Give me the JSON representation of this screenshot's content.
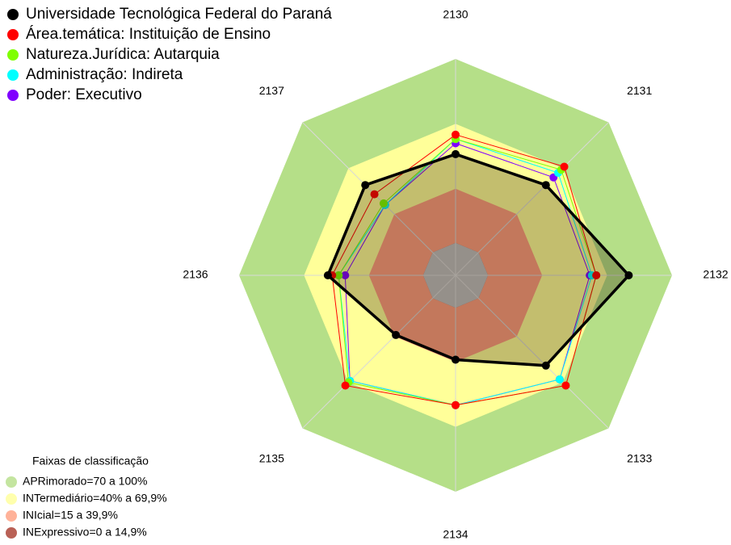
{
  "chart_data": {
    "type": "radar",
    "categories": [
      "2130",
      "2131",
      "2132",
      "2133",
      "2134",
      "2135",
      "2136",
      "2137"
    ],
    "rlim": [
      0,
      100
    ],
    "series": [
      {
        "name": "Universidade Tecnológica Federal do Paraná",
        "color": "#000000",
        "values": [
          56,
          59,
          80,
          59,
          39,
          39,
          59,
          59
        ]
      },
      {
        "name": "Área.temática: Instituição de Ensino",
        "color": "#ff0000",
        "values": [
          65,
          71,
          65,
          72,
          60,
          72,
          57,
          53
        ]
      },
      {
        "name": "Natureza.Jurídica: Autarquia",
        "color": "#7fff00",
        "values": [
          63,
          69,
          65,
          72,
          60,
          70,
          54,
          47
        ]
      },
      {
        "name": "Administração: Indireta",
        "color": "#00ffff",
        "values": [
          63,
          67,
          63,
          68,
          60,
          69,
          54,
          46
        ]
      },
      {
        "name": "Poder: Executivo",
        "color": "#8000ff",
        "values": [
          61,
          64,
          62,
          68,
          60,
          69,
          51,
          46
        ]
      }
    ],
    "bands_title": "Faixas de classificação",
    "bands": [
      {
        "label": "APRimorado=70 a 100%",
        "color": "#b5df88",
        "max": 100
      },
      {
        "label": "INTermediário=40% a 69,9%",
        "color": "#ffff99",
        "max": 70
      },
      {
        "label": "INIcial=15 a 39,9%",
        "color": "#ff9f80",
        "max": 40
      },
      {
        "label": "INExpressivo=0 a 14,9%",
        "color": "#a83a2c",
        "max": 15
      }
    ]
  }
}
